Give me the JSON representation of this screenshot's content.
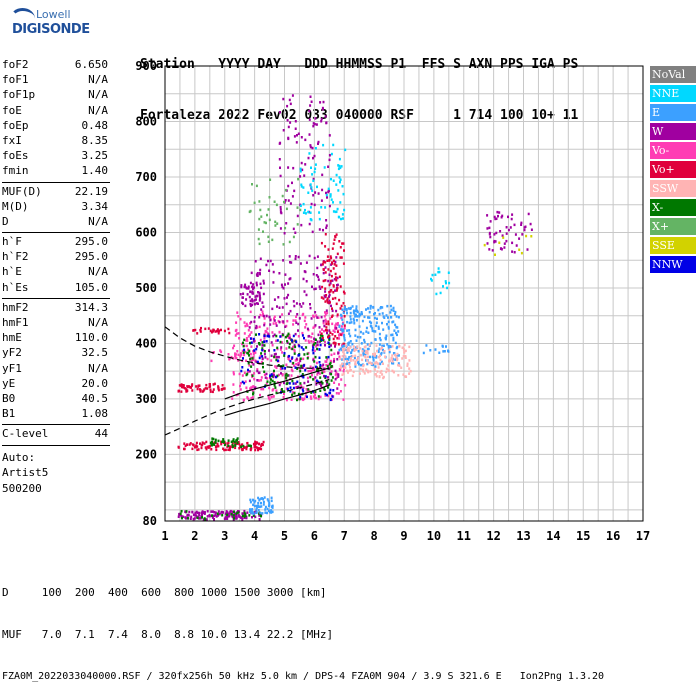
{
  "logo": {
    "line1": "Lowell",
    "line2": "DIGISONDE"
  },
  "header": {
    "line1": "Station   YYYY DAY   DDD HHMMSS P1  FFS S AXN PPS IGA PS",
    "line2": "Fortaleza 2022 Fev02 033 040000 RSF     1 714 100 10+ 11"
  },
  "params": {
    "group1": [
      {
        "name": "foF2",
        "value": "6.650"
      },
      {
        "name": "foF1",
        "value": "N/A"
      },
      {
        "name": "foF1p",
        "value": "N/A"
      },
      {
        "name": "foE",
        "value": "N/A"
      },
      {
        "name": "foEp",
        "value": "0.48"
      },
      {
        "name": "fxI",
        "value": "8.35"
      },
      {
        "name": "foEs",
        "value": "3.25"
      },
      {
        "name": "fmin",
        "value": "1.40"
      }
    ],
    "group2": [
      {
        "name": "MUF(D)",
        "value": "22.19"
      },
      {
        "name": "M(D)",
        "value": "3.34"
      },
      {
        "name": "D",
        "value": "N/A"
      }
    ],
    "group3": [
      {
        "name": "h`F",
        "value": "295.0"
      },
      {
        "name": "h`F2",
        "value": "295.0"
      },
      {
        "name": "h`E",
        "value": "N/A"
      },
      {
        "name": "h`Es",
        "value": "105.0"
      }
    ],
    "group4": [
      {
        "name": "hmF2",
        "value": "314.3"
      },
      {
        "name": "hmF1",
        "value": "N/A"
      },
      {
        "name": "hmE",
        "value": "110.0"
      },
      {
        "name": "yF2",
        "value": "32.5"
      },
      {
        "name": "yF1",
        "value": "N/A"
      },
      {
        "name": "yE",
        "value": "20.0"
      },
      {
        "name": "B0",
        "value": "40.5"
      },
      {
        "name": "B1",
        "value": "1.08"
      }
    ],
    "group5": [
      {
        "name": "C-level",
        "value": "44"
      }
    ],
    "auto": [
      "Auto:",
      "Artist5",
      "500200"
    ]
  },
  "legend": [
    {
      "label": "NoVal",
      "color": "#808080"
    },
    {
      "label": "NNE",
      "color": "#00d8ff"
    },
    {
      "label": "E",
      "color": "#3ca0ff"
    },
    {
      "label": "W",
      "color": "#a000a0"
    },
    {
      "label": "Vo-",
      "color": "#ff3cb4"
    },
    {
      "label": "Vo+",
      "color": "#e0003c"
    },
    {
      "label": "SSW",
      "color": "#ffb4b4"
    },
    {
      "label": "X-",
      "color": "#007800"
    },
    {
      "label": "X+",
      "color": "#64b464"
    },
    {
      "label": "SSE",
      "color": "#d2d200"
    },
    {
      "label": "NNW",
      "color": "#0000e6"
    }
  ],
  "footer": {
    "line1": "D     100  200  400  600  800 1000 1500 3000 [km]",
    "line2": "MUF   7.0  7.1  7.4  8.0  8.8 10.0 13.4 22.2 [MHz]",
    "line3": "FZA0M_2022033040000.RSF / 320fx256h 50 kHz 5.0 km / DPS-4 FZA0M 904 / 3.9 S 321.6 E   Ion2Png 1.3.20"
  },
  "chart_data": {
    "type": "scatter",
    "xlim": [
      1,
      17
    ],
    "ylim": [
      80,
      900
    ],
    "x_ticks": [
      "1",
      "2",
      "3",
      "4",
      "5",
      "6",
      "7",
      "8",
      "9",
      "10",
      "11",
      "12",
      "13",
      "14",
      "15",
      "16",
      "17"
    ],
    "y_ticks": [
      "80",
      "200",
      "300",
      "400",
      "500",
      "600",
      "700",
      "800",
      "900"
    ],
    "grid": true,
    "clusters": [
      {
        "x": [
          1.4,
          4.2
        ],
        "y": [
          85,
          100
        ],
        "color": "#a000a0",
        "count": 140
      },
      {
        "x": [
          1.4,
          4.2
        ],
        "y": [
          85,
          100
        ],
        "color": "#007800",
        "count": 30
      },
      {
        "x": [
          3.8,
          4.6
        ],
        "y": [
          95,
          125
        ],
        "color": "#3ca0ff",
        "count": 60
      },
      {
        "x": [
          1.4,
          4.3
        ],
        "y": [
          210,
          225
        ],
        "color": "#e0003c",
        "count": 120
      },
      {
        "x": [
          2.5,
          4.0
        ],
        "y": [
          215,
          232
        ],
        "color": "#007800",
        "count": 35
      },
      {
        "x": [
          1.4,
          3.0
        ],
        "y": [
          315,
          330
        ],
        "color": "#e0003c",
        "count": 60
      },
      {
        "x": [
          2.5,
          4.0
        ],
        "y": [
          370,
          390
        ],
        "color": "#ff3cb4",
        "count": 25
      },
      {
        "x": [
          1.9,
          3.2
        ],
        "y": [
          420,
          430
        ],
        "color": "#e0003c",
        "count": 25
      },
      {
        "x": [
          3.5,
          4.2
        ],
        "y": [
          470,
          510
        ],
        "color": "#a000a0",
        "count": 40
      },
      {
        "x": [
          3.2,
          7.0
        ],
        "y": [
          300,
          460
        ],
        "color": "#ff3cb4",
        "count": 380
      },
      {
        "x": [
          3.8,
          6.8
        ],
        "y": [
          320,
          560
        ],
        "color": "#a000a0",
        "count": 260
      },
      {
        "x": [
          3.5,
          6.6
        ],
        "y": [
          300,
          420
        ],
        "color": "#007800",
        "count": 140
      },
      {
        "x": [
          3.5,
          6.6
        ],
        "y": [
          300,
          420
        ],
        "color": "#0000e6",
        "count": 90
      },
      {
        "x": [
          6.2,
          7.0
        ],
        "y": [
          400,
          600
        ],
        "color": "#e0003c",
        "count": 110
      },
      {
        "x": [
          6.8,
          8.8
        ],
        "y": [
          360,
          470
        ],
        "color": "#3ca0ff",
        "count": 260
      },
      {
        "x": [
          6.8,
          9.2
        ],
        "y": [
          340,
          400
        ],
        "color": "#ffb4b4",
        "count": 160
      },
      {
        "x": [
          4.8,
          6.5
        ],
        "y": [
          600,
          850
        ],
        "color": "#a000a0",
        "count": 110
      },
      {
        "x": [
          5.5,
          7.0
        ],
        "y": [
          620,
          760
        ],
        "color": "#00d8ff",
        "count": 70
      },
      {
        "x": [
          3.8,
          5.5
        ],
        "y": [
          580,
          700
        ],
        "color": "#64b464",
        "count": 40
      },
      {
        "x": [
          9.8,
          10.6
        ],
        "y": [
          490,
          540
        ],
        "color": "#00d8ff",
        "count": 15
      },
      {
        "x": [
          9.6,
          10.5
        ],
        "y": [
          385,
          400
        ],
        "color": "#3ca0ff",
        "count": 12
      },
      {
        "x": [
          11.7,
          13.3
        ],
        "y": [
          565,
          640
        ],
        "color": "#a000a0",
        "count": 55
      },
      {
        "x": [
          11.5,
          13.3
        ],
        "y": [
          560,
          620
        ],
        "color": "#d2d200",
        "count": 8
      }
    ],
    "curves": [
      {
        "name": "dashed-upper",
        "style": "dashed",
        "points": [
          [
            1,
            430
          ],
          [
            1.5,
            410
          ],
          [
            2,
            395
          ],
          [
            2.5,
            385
          ],
          [
            3,
            377
          ],
          [
            3.5,
            370
          ],
          [
            4,
            365
          ],
          [
            4.5,
            361
          ],
          [
            5,
            358
          ],
          [
            5.5,
            356
          ],
          [
            6,
            355
          ],
          [
            6.5,
            354
          ]
        ]
      },
      {
        "name": "dashed-lower",
        "style": "dashed",
        "points": [
          [
            1,
            235
          ],
          [
            1.5,
            247
          ],
          [
            2,
            260
          ],
          [
            2.5,
            272
          ],
          [
            3,
            283
          ],
          [
            3.5,
            292
          ],
          [
            4,
            300
          ],
          [
            4.5,
            307
          ],
          [
            5,
            313
          ],
          [
            5.5,
            320
          ],
          [
            6,
            327
          ],
          [
            6.5,
            335
          ]
        ]
      },
      {
        "name": "solid-trace",
        "style": "solid",
        "points": [
          [
            3,
            270
          ],
          [
            3.5,
            278
          ],
          [
            4,
            285
          ],
          [
            4.5,
            292
          ],
          [
            5,
            300
          ],
          [
            5.5,
            307
          ],
          [
            6,
            315
          ],
          [
            6.5,
            325
          ]
        ]
      },
      {
        "name": "solid-profile",
        "style": "solid",
        "points": [
          [
            3,
            300
          ],
          [
            3.5,
            310
          ],
          [
            4,
            318
          ],
          [
            4.5,
            325
          ],
          [
            5,
            332
          ],
          [
            5.5,
            340
          ],
          [
            6,
            348
          ],
          [
            6.5,
            356
          ]
        ]
      }
    ]
  }
}
